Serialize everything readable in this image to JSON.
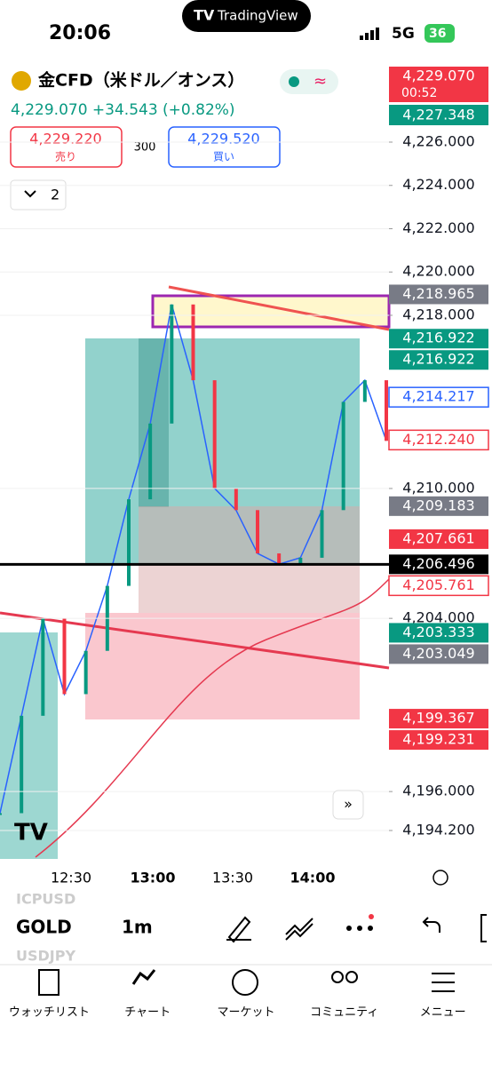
{
  "status_bar": {
    "time": "20:06",
    "app": "TradingView",
    "network": "5G",
    "battery": "36"
  },
  "header": {
    "symbol": "金CFD（米ドル／オンス）",
    "quote": "4,229.070 +34.543 (+0.82%)",
    "sell": {
      "price": "4,229.220",
      "label": "売り"
    },
    "spread": "300",
    "buy": {
      "price": "4,229.520",
      "label": "買い"
    },
    "indicator_toggle": "2"
  },
  "price_axis": {
    "current": {
      "price": "4,229.070",
      "countdown": "00:52",
      "previous": "4,227.348"
    },
    "ticks": [
      {
        "value": 4226,
        "label": "4,226.000"
      },
      {
        "value": 4224,
        "label": "4,224.000"
      },
      {
        "value": 4222,
        "label": "4,222.000"
      },
      {
        "value": 4220,
        "label": "4,220.000"
      },
      {
        "value": 4218,
        "label": "4,218.000"
      },
      {
        "value": 4210,
        "label": "4,210.000"
      },
      {
        "value": 4204,
        "label": "4,204.000"
      },
      {
        "value": 4196,
        "label": "4,196.000"
      },
      {
        "value": 4194.2,
        "label": "4,194.200"
      }
    ],
    "markers": [
      {
        "value": 4218.965,
        "label": "4,218.965",
        "style": "gray"
      },
      {
        "value": 4216.922,
        "label": "4,216.922",
        "style": "green"
      },
      {
        "value": 4216.922,
        "label": "4,216.922",
        "style": "green"
      },
      {
        "value": 4214.217,
        "label": "4,214.217",
        "style": "blue-outline"
      },
      {
        "value": 4212.24,
        "label": "4,212.240",
        "style": "red-outline"
      },
      {
        "value": 4209.183,
        "label": "4,209.183",
        "style": "gray"
      },
      {
        "value": 4207.661,
        "label": "4,207.661",
        "style": "red"
      },
      {
        "value": 4206.496,
        "label": "4,206.496",
        "style": "black"
      },
      {
        "value": 4205.761,
        "label": "4,205.761",
        "style": "red-outline"
      },
      {
        "value": 4203.333,
        "label": "4,203.333",
        "style": "green"
      },
      {
        "value": 4203.049,
        "label": "4,203.049",
        "style": "gray"
      },
      {
        "value": 4199.367,
        "label": "4,199.367",
        "style": "red"
      },
      {
        "value": 4199.231,
        "label": "4,199.231",
        "style": "red"
      }
    ]
  },
  "chart": {
    "prices": [
      4195.0,
      4199.5,
      4204.0,
      4200.5,
      4202.5,
      4205.5,
      4209.5,
      4213.0,
      4218.5,
      4215.0,
      4210.0,
      4209.0,
      4207.0,
      4206.5,
      4206.8,
      4209.0,
      4214.0,
      4215.0,
      4212.2
    ]
  },
  "time_axis": [
    "12:30",
    "13:00",
    "13:30",
    "14:00"
  ],
  "toolbar": {
    "symbols": [
      "ICPUSD",
      "GOLD",
      "USDJPY"
    ],
    "interval": "1m"
  },
  "nav": [
    "ウォッチリスト",
    "チャート",
    "マーケット",
    "コミュニティ",
    "メニュー"
  ]
}
